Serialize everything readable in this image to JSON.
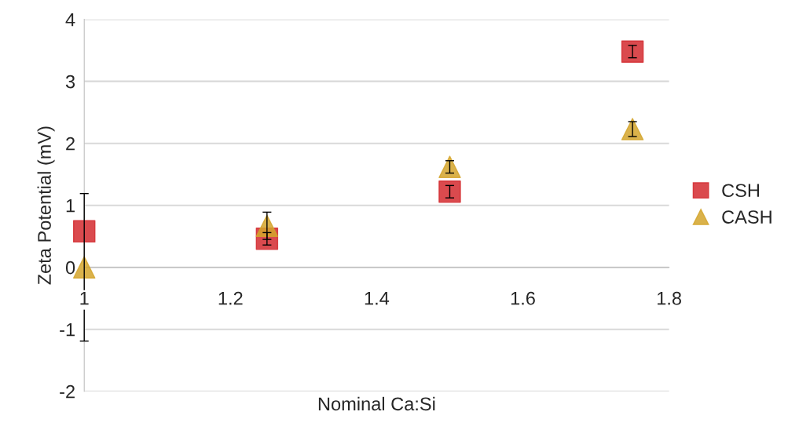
{
  "chart_data": {
    "type": "scatter",
    "xlabel": "Nominal Ca:Si",
    "ylabel": "Zeta Potential (mV)",
    "x": [
      1,
      1.25,
      1.5,
      1.75
    ],
    "series": [
      {
        "name": "CSH",
        "color": "#d42a2f",
        "marker": "square",
        "values": [
          0.58,
          0.46,
          1.22,
          3.48
        ],
        "errors": [
          null,
          0.1,
          0.1,
          0.1
        ]
      },
      {
        "name": "CASH",
        "color": "#d4a52c",
        "marker": "triangle",
        "values": [
          0,
          0.67,
          1.62,
          2.23
        ],
        "errors": [
          1.19,
          0.22,
          0.1,
          0.12
        ]
      }
    ],
    "xlim": [
      1,
      1.8
    ],
    "xticks": [
      1,
      1.2,
      1.4,
      1.6,
      1.8
    ],
    "ylim": [
      -2,
      4
    ],
    "yticks": [
      -2,
      -1,
      0,
      1,
      2,
      3,
      4
    ],
    "grid": "y",
    "legend": "right"
  }
}
